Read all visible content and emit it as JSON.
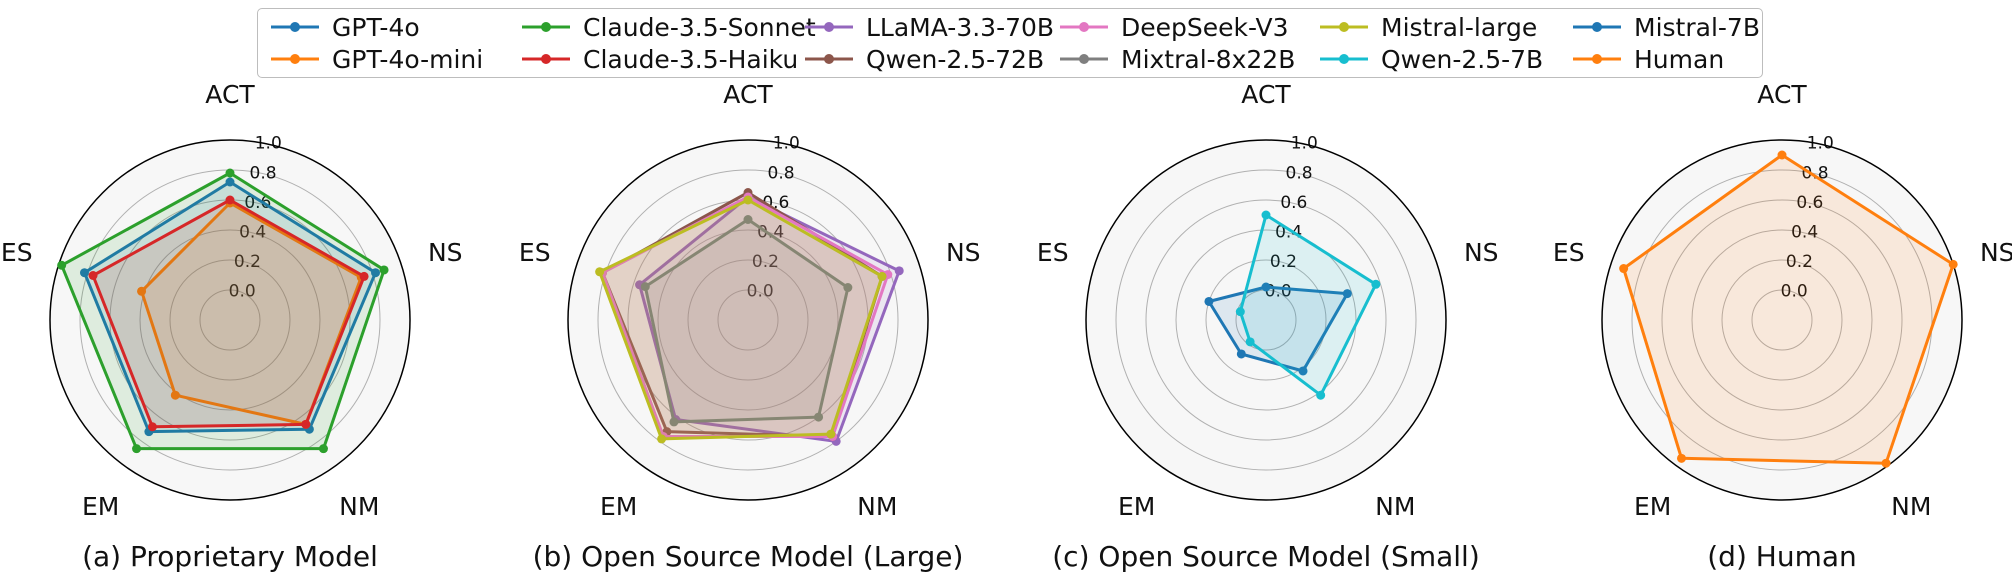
{
  "legend": [
    {
      "name": "GPT-4o",
      "color": "#1f77b4"
    },
    {
      "name": "GPT-4o-mini",
      "color": "#ff7f0e"
    },
    {
      "name": "Claude-3.5-Sonnet",
      "color": "#2ca02c"
    },
    {
      "name": "Claude-3.5-Haiku",
      "color": "#d62728"
    },
    {
      "name": "LLaMA-3.3-70B",
      "color": "#9467bd"
    },
    {
      "name": "Qwen-2.5-72B",
      "color": "#8c564b"
    },
    {
      "name": "DeepSeek-V3",
      "color": "#e377c2"
    },
    {
      "name": "Mixtral-8x22B",
      "color": "#7f7f7f"
    },
    {
      "name": "Mistral-large",
      "color": "#bcbd22"
    },
    {
      "name": "Qwen-2.5-7B",
      "color": "#17becf"
    },
    {
      "name": "Mistral-7B",
      "color": "#1f77b4"
    },
    {
      "name": "Human",
      "color": "#ff7f0e"
    }
  ],
  "chart_data": [
    {
      "type": "radar",
      "title": "(a) Proprietary Model",
      "axes": [
        "ACT",
        "NS",
        "NM",
        "EM",
        "ES"
      ],
      "rticks": [
        "0.0",
        "0.2",
        "0.4",
        "0.6",
        "0.8",
        "1.0"
      ],
      "rlim": [
        -0.2,
        1.0
      ],
      "series": [
        {
          "name": "GPT-4o",
          "color": "#1f77b4",
          "values": [
            0.72,
            0.82,
            0.7,
            0.72,
            0.82
          ]
        },
        {
          "name": "GPT-4o-mini",
          "color": "#ff7f0e",
          "values": [
            0.58,
            0.72,
            0.66,
            0.42,
            0.42
          ]
        },
        {
          "name": "Claude-3.5-Sonnet",
          "color": "#2ca02c",
          "values": [
            0.78,
            0.88,
            0.86,
            0.86,
            0.98
          ]
        },
        {
          "name": "Claude-3.5-Haiku",
          "color": "#d62728",
          "values": [
            0.6,
            0.74,
            0.66,
            0.68,
            0.76
          ]
        }
      ]
    },
    {
      "type": "radar",
      "title": "(b) Open Source Model (Large)",
      "axes": [
        "ACT",
        "NS",
        "NM",
        "EM",
        "ES"
      ],
      "rticks": [
        "0.0",
        "0.2",
        "0.4",
        "0.6",
        "0.8",
        "1.0"
      ],
      "rlim": [
        -0.2,
        1.0
      ],
      "series": [
        {
          "name": "LLaMA-3.3-70B",
          "color": "#9467bd",
          "values": [
            0.62,
            0.86,
            0.8,
            0.62,
            0.56
          ]
        },
        {
          "name": "Qwen-2.5-72B",
          "color": "#8c564b",
          "values": [
            0.65,
            0.74,
            0.76,
            0.72,
            0.82
          ]
        },
        {
          "name": "DeepSeek-V3",
          "color": "#e377c2",
          "values": [
            0.62,
            0.78,
            0.76,
            0.76,
            0.82
          ]
        },
        {
          "name": "Mixtral-8x22B",
          "color": "#7f7f7f",
          "values": [
            0.47,
            0.5,
            0.6,
            0.64,
            0.52
          ]
        },
        {
          "name": "Mistral-large",
          "color": "#bcbd22",
          "values": [
            0.6,
            0.74,
            0.74,
            0.78,
            0.84
          ]
        }
      ]
    },
    {
      "type": "radar",
      "title": "(c) Open Source Model (Small)",
      "axes": [
        "ACT",
        "NS",
        "NM",
        "EM",
        "ES"
      ],
      "rticks": [
        "0.0",
        "0.2",
        "0.4",
        "0.6",
        "0.8",
        "1.0"
      ],
      "rlim": [
        -0.2,
        1.0
      ],
      "series": [
        {
          "name": "Mistral-7B",
          "color": "#1f77b4",
          "values": [
            0.02,
            0.37,
            0.22,
            0.08,
            0.2
          ]
        },
        {
          "name": "Qwen-2.5-7B",
          "color": "#17becf",
          "values": [
            0.5,
            0.57,
            0.42,
            -0.02,
            -0.02
          ]
        }
      ]
    },
    {
      "type": "radar",
      "title": "(d) Human",
      "axes": [
        "ACT",
        "NS",
        "NM",
        "EM",
        "ES"
      ],
      "rticks": [
        "0.0",
        "0.2",
        "0.4",
        "0.6",
        "0.8",
        "1.0"
      ],
      "rlim": [
        -0.2,
        1.0
      ],
      "series": [
        {
          "name": "Human",
          "color": "#ff7f0e",
          "values": [
            0.9,
            1.0,
            0.98,
            0.94,
            0.91
          ]
        }
      ]
    }
  ]
}
